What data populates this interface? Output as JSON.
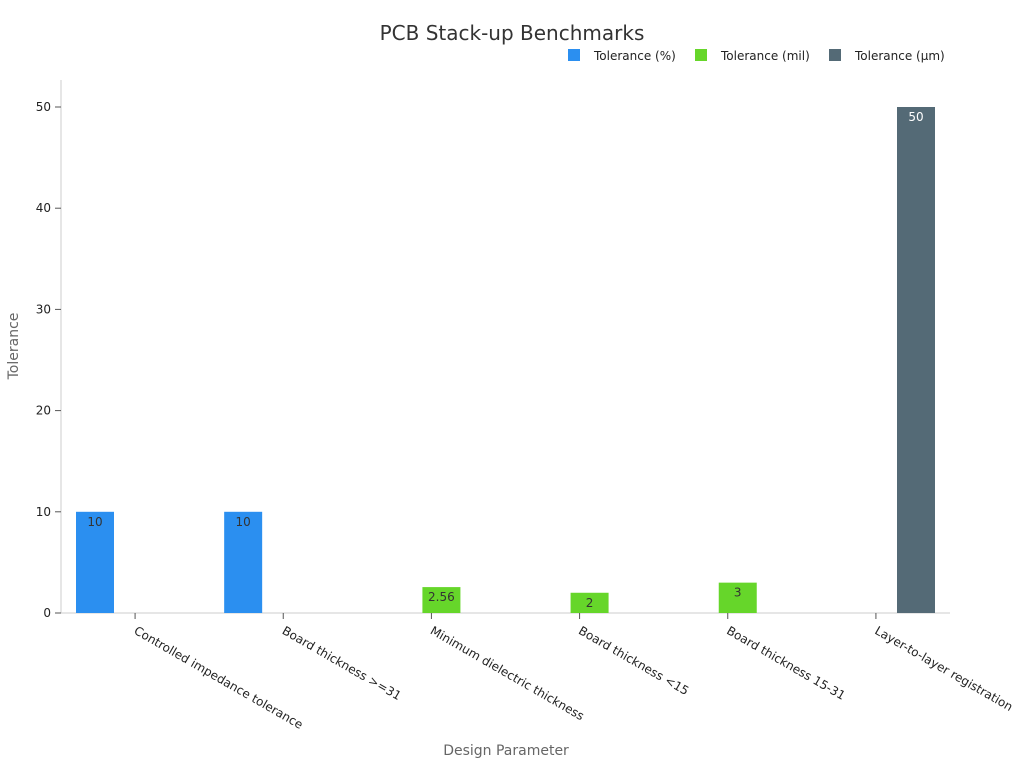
{
  "chart_data": {
    "type": "bar",
    "title": "PCB Stack-up Benchmarks",
    "xlabel": "Design Parameter",
    "ylabel": "Tolerance",
    "ylim": [
      0,
      52.5
    ],
    "yticks": [
      0,
      10,
      20,
      30,
      40,
      50
    ],
    "categories": [
      "Controlled impedance tolerance",
      "Board thickness >=31",
      "Minimum dielectric thickness",
      "Board thickness <15",
      "Board thickness 15-31",
      "Layer-to-layer registration"
    ],
    "series": [
      {
        "name": "Tolerance (%)",
        "color": "#2b8ff0",
        "values": [
          10,
          10,
          null,
          null,
          null,
          null
        ]
      },
      {
        "name": "Tolerance (mil)",
        "color": "#66d62a",
        "values": [
          null,
          null,
          2.56,
          2,
          3,
          null
        ]
      },
      {
        "name": "Tolerance (µm)",
        "color": "#546a76",
        "values": [
          null,
          null,
          null,
          null,
          null,
          50
        ]
      }
    ],
    "data_labels": [
      "10",
      "10",
      "2.56",
      "2",
      "3",
      "50"
    ],
    "legend_position": "top-right",
    "grid": false
  }
}
